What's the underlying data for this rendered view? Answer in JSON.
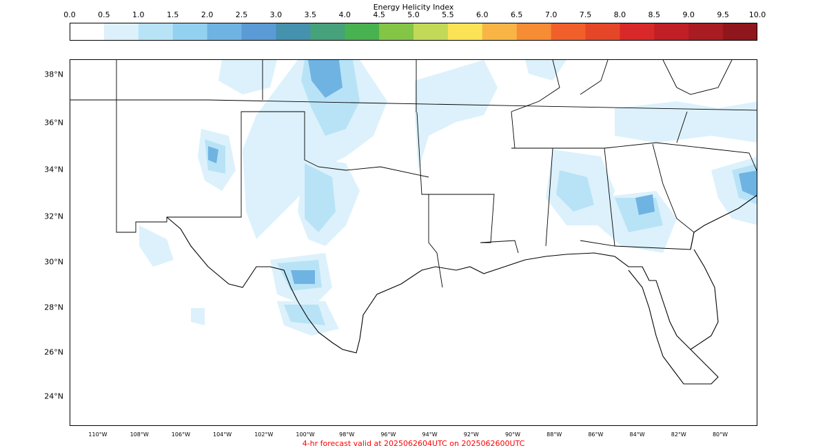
{
  "colorbar": {
    "title": "Energy Helicity Index",
    "ticks": [
      "0.0",
      "0.5",
      "1.0",
      "1.5",
      "2.0",
      "2.5",
      "3.0",
      "3.5",
      "4.0",
      "4.5",
      "5.0",
      "5.5",
      "6.0",
      "6.5",
      "7.0",
      "7.5",
      "8.0",
      "8.5",
      "9.0",
      "9.5",
      "10.0"
    ],
    "colors": [
      "#ffffff",
      "#dcf1fb",
      "#b8e3f7",
      "#93d1f1",
      "#6fb3e3",
      "#5a9bd6",
      "#4592ae",
      "#46a27b",
      "#47b24f",
      "#84c546",
      "#c2d957",
      "#fae354",
      "#f8b545",
      "#f68c33",
      "#f15f2a",
      "#e54627",
      "#d92829",
      "#c01f26",
      "#a81c22",
      "#8f161c"
    ]
  },
  "map": {
    "lat_labels": [
      "38°N",
      "36°N",
      "34°N",
      "32°N",
      "30°N",
      "28°N",
      "26°N",
      "24°N"
    ],
    "lon_labels": [
      "110°W",
      "108°W",
      "106°W",
      "104°W",
      "102°W",
      "100°W",
      "98°W",
      "96°W",
      "94°W",
      "92°W",
      "90°W",
      "88°W",
      "86°W",
      "84°W",
      "82°W",
      "80°W"
    ]
  },
  "footer": "4-hr forecast valid at 2025062604UTC on 2025062600UTC"
}
